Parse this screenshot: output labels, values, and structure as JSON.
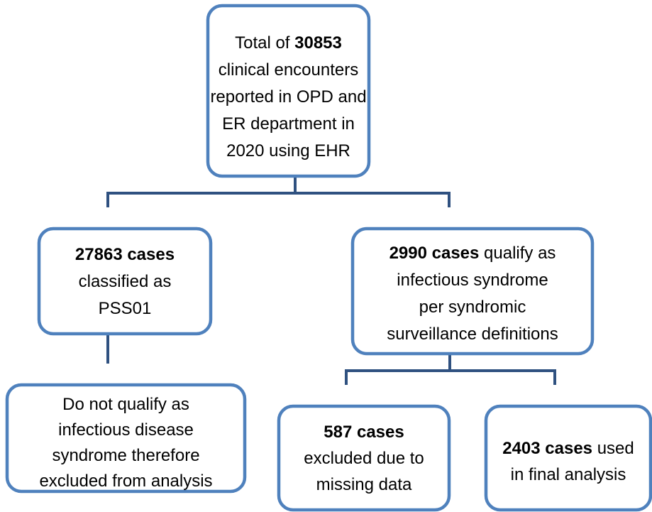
{
  "nodes": [
    {
      "lines": [
        [
          {
            "text": "Total of ",
            "bold": false
          },
          {
            "text": "30853",
            "bold": true
          }
        ],
        [
          {
            "text": "clinical encounters",
            "bold": false
          }
        ],
        [
          {
            "text": "reported in OPD and",
            "bold": false
          }
        ],
        [
          {
            "text": "ER department in",
            "bold": false
          }
        ],
        [
          {
            "text": "2020 using EHR",
            "bold": false
          }
        ]
      ]
    },
    {
      "lines": [
        [
          {
            "text": "27863 cases",
            "bold": true
          }
        ],
        [
          {
            "text": "classified as",
            "bold": false
          }
        ],
        [
          {
            "text": "PSS01",
            "bold": false
          }
        ]
      ]
    },
    {
      "lines": [
        [
          {
            "text": "2990 cases",
            "bold": true
          },
          {
            "text": " qualify as",
            "bold": false
          }
        ],
        [
          {
            "text": "infectious syndrome",
            "bold": false
          }
        ],
        [
          {
            "text": "per syndromic",
            "bold": false
          }
        ],
        [
          {
            "text": "surveillance definitions",
            "bold": false
          }
        ]
      ]
    },
    {
      "lines": [
        [
          {
            "text": "Do not qualify as",
            "bold": false
          }
        ],
        [
          {
            "text": "infectious disease",
            "bold": false
          }
        ],
        [
          {
            "text": "syndrome therefore",
            "bold": false
          }
        ],
        [
          {
            "text": "excluded from analysis",
            "bold": false
          }
        ]
      ]
    },
    {
      "lines": [
        [
          {
            "text": "587 cases",
            "bold": true
          }
        ],
        [
          {
            "text": "excluded due to",
            "bold": false
          }
        ],
        [
          {
            "text": "missing data",
            "bold": false
          }
        ]
      ]
    },
    {
      "lines": [
        [
          {
            "text": "2403 cases",
            "bold": true
          },
          {
            "text": " used",
            "bold": false
          }
        ],
        [
          {
            "text": "in final analysis",
            "bold": false
          }
        ]
      ]
    }
  ]
}
